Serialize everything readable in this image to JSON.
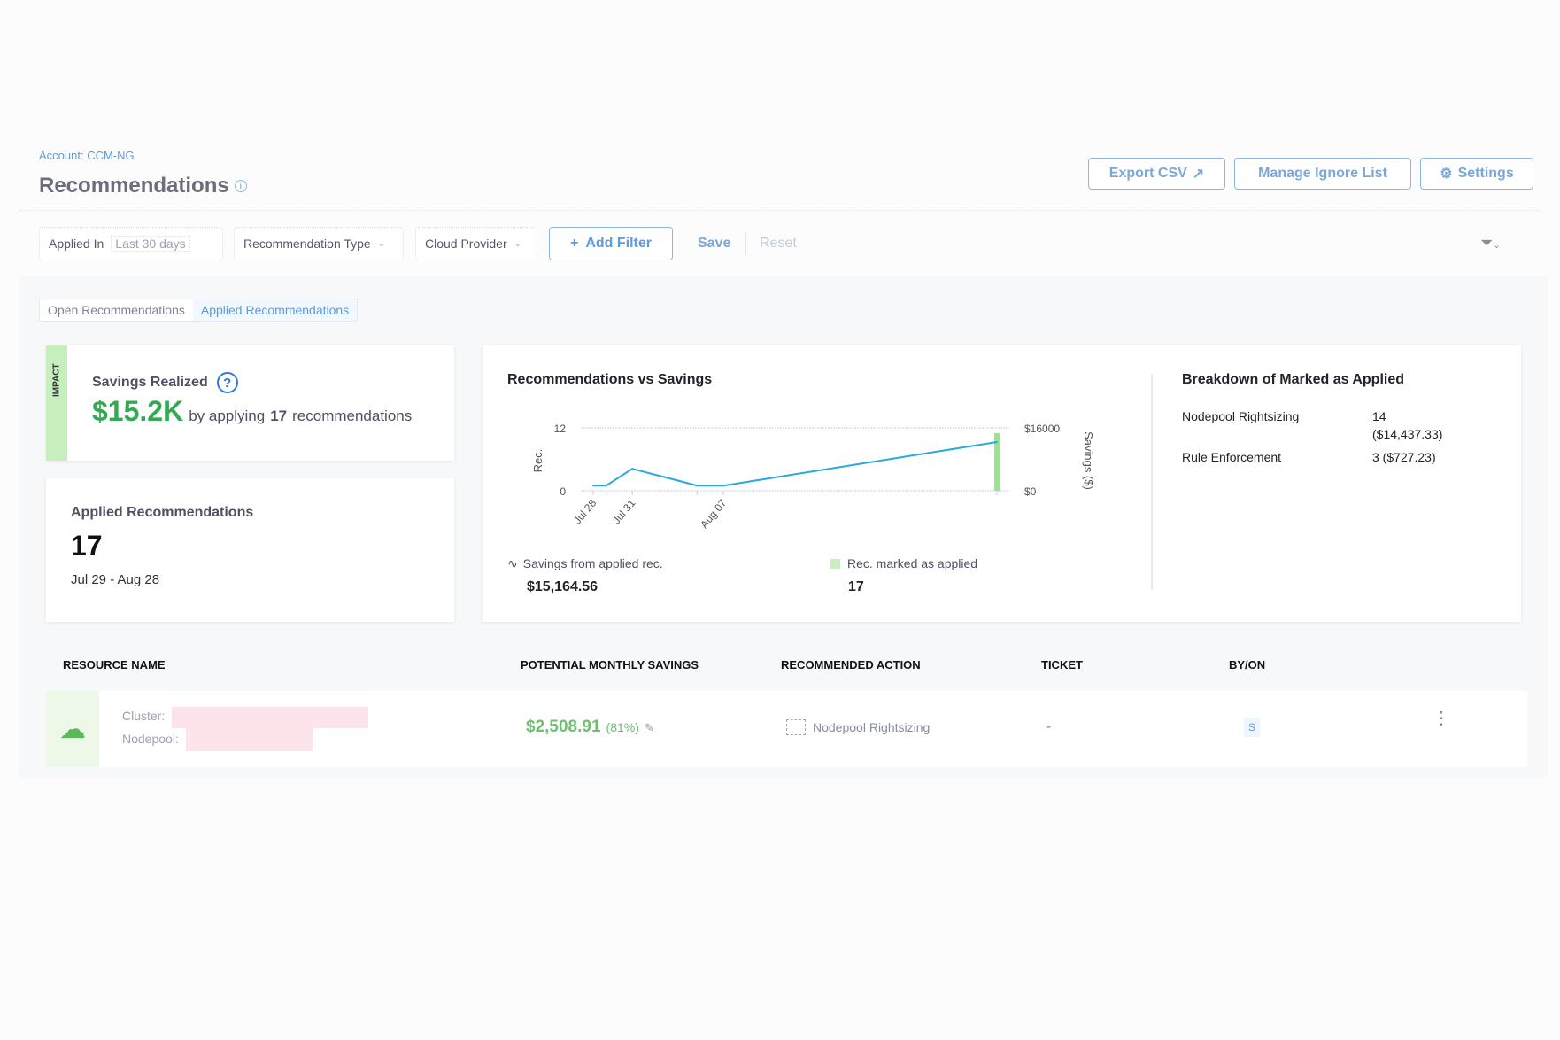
{
  "header": {
    "account": "Account: CCM-NG",
    "title": "Recommendations",
    "export_csv": "Export CSV",
    "manage_ignore": "Manage Ignore List",
    "settings": "Settings"
  },
  "filters": {
    "applied_in_label": "Applied In",
    "applied_in_value": "Last 30 days",
    "recommendation_type": "Recommendation Type",
    "cloud_provider": "Cloud Provider",
    "add_filter": "Add Filter",
    "save": "Save",
    "reset": "Reset"
  },
  "tabs": [
    {
      "label": "Open Recommendations"
    },
    {
      "label": "Applied Recommendations",
      "active": true
    }
  ],
  "savings_card": {
    "side_label": "IMPACT",
    "title": "Savings Realized",
    "amount": "$15.2K",
    "by_applying": "by applying",
    "count": "17",
    "recommendations": "recommendations"
  },
  "applied_card": {
    "title": "Applied Recommendations",
    "count": "17",
    "range": "Jul 29 - Aug 28"
  },
  "chart_section": {
    "title": "Recommendations vs Savings",
    "legend_savings": "Savings from applied rec.",
    "savings_total": "$15,164.56",
    "legend_rec": "Rec. marked as applied",
    "rec_total": "17"
  },
  "chart_data": {
    "type": "line",
    "title": "Recommendations vs Savings",
    "ylabel": "Rec.",
    "y2label": "Savings ($)",
    "ylim": [
      0,
      12
    ],
    "y2lim": [
      0,
      16000
    ],
    "yticks": [
      "0",
      "12"
    ],
    "y2ticks": [
      "$0",
      "$16000"
    ],
    "xticks": [
      "Jul 28",
      "Jul 31",
      "Aug 07"
    ],
    "x": [
      "Jul 28",
      "Jul 29",
      "Jul 31",
      "Aug 05",
      "Aug 07",
      "Aug 28"
    ],
    "series": [
      {
        "name": "Savings from applied rec.",
        "type": "line",
        "axis": "y2",
        "color": "#29a8dc",
        "values": [
          1300,
          1300,
          5600,
          1300,
          1300,
          12400
        ]
      },
      {
        "name": "Rec. marked as applied",
        "type": "bar",
        "axis": "y",
        "color": "#9be38f",
        "values": [
          0,
          0,
          0,
          0,
          0,
          11
        ]
      }
    ],
    "grid": true
  },
  "breakdown": {
    "title": "Breakdown of Marked as Applied",
    "rows": [
      {
        "label": "Nodepool Rightsizing",
        "value": "14",
        "amount": "($14,437.33)"
      },
      {
        "label": "Rule Enforcement",
        "value": "3 ($727.23)"
      }
    ]
  },
  "table": {
    "headers": [
      "RESOURCE NAME",
      "POTENTIAL MONTHLY SAVINGS",
      "RECOMMENDED ACTION",
      "TICKET",
      "BY/ON"
    ],
    "rows": [
      {
        "cluster_label": "Cluster:",
        "nodepool_label": "Nodepool:",
        "savings": "$2,508.91",
        "percent": "(81%)",
        "action": "Nodepool Rightsizing",
        "ticket": "-",
        "by": "S"
      }
    ]
  },
  "colors": {
    "accent": "#5d9bdc",
    "green": "#34a853",
    "impact": "#9be38f"
  }
}
